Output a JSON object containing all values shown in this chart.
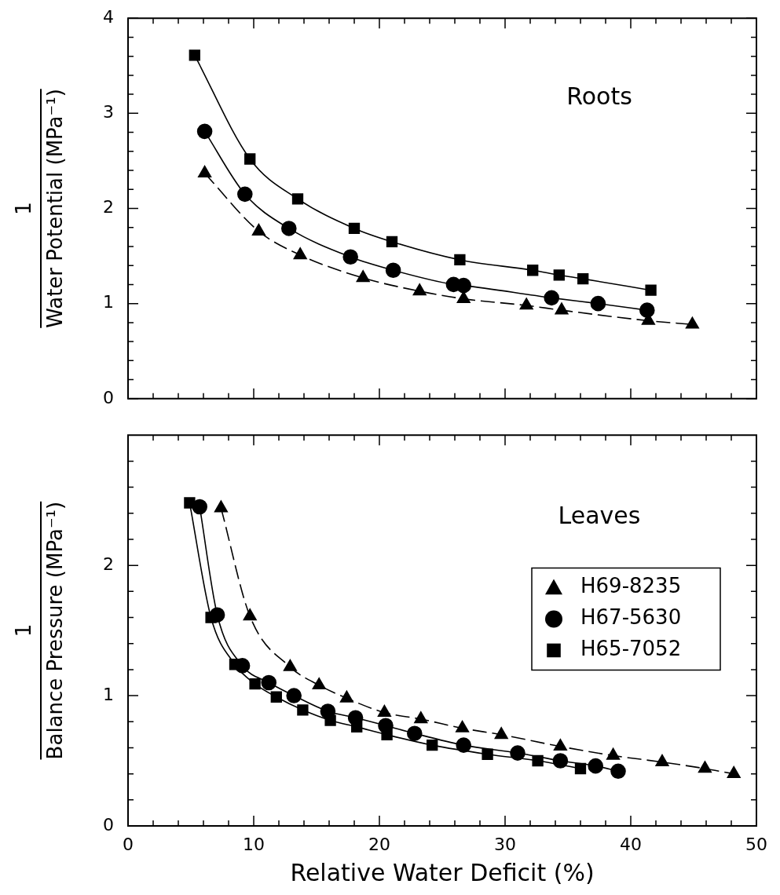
{
  "chart_data": [
    {
      "type": "line",
      "title": "Roots",
      "ylabel": "Water Potential (MPa⁻¹)",
      "annotations": [
        "1"
      ],
      "xlim": [
        0,
        50
      ],
      "xticks": [
        0,
        {
          "value": 2,
          "label": null
        },
        {
          "value": 4,
          "label": null
        },
        {
          "value": 6,
          "label": null
        },
        {
          "value": 8,
          "label": null
        },
        10,
        {
          "value": 12,
          "label": null
        },
        {
          "value": 14,
          "label": null
        },
        {
          "value": 16,
          "label": null
        },
        {
          "value": 18,
          "label": null
        },
        20,
        {
          "value": 22,
          "label": null
        },
        {
          "value": 24,
          "label": null
        },
        {
          "value": 26,
          "label": null
        },
        {
          "value": 28,
          "label": null
        },
        30,
        {
          "value": 32,
          "label": null
        },
        {
          "value": 34,
          "label": null
        },
        {
          "value": 36,
          "label": null
        },
        {
          "value": 38,
          "label": null
        },
        40,
        {
          "value": 42,
          "label": null
        },
        {
          "value": 44,
          "label": null
        },
        {
          "value": 46,
          "label": null
        },
        {
          "value": 48,
          "label": null
        },
        50
      ],
      "ylim": [
        0,
        4
      ],
      "yticks": [
        0,
        {
          "value": 0.2,
          "label": null
        },
        {
          "value": 0.4,
          "label": null
        },
        {
          "value": 0.6,
          "label": null
        },
        {
          "value": 0.8,
          "label": null
        },
        1,
        {
          "value": 1.2,
          "label": null
        },
        {
          "value": 1.4,
          "label": null
        },
        {
          "value": 1.6,
          "label": null
        },
        {
          "value": 1.8,
          "label": null
        },
        2,
        {
          "value": 2.2,
          "label": null
        },
        {
          "value": 2.4,
          "label": null
        },
        {
          "value": 2.6,
          "label": null
        },
        {
          "value": 2.8,
          "label": null
        },
        3,
        {
          "value": 3.2,
          "label": null
        },
        {
          "value": 3.4,
          "label": null
        },
        {
          "value": 3.6,
          "label": null
        },
        {
          "value": 3.8,
          "label": null
        },
        4
      ],
      "tick_labels": "y",
      "series": [
        {
          "color": "#000000",
          "marker": "triangle",
          "line_style": "dashed",
          "x": [
            6.1,
            10.4,
            13.7,
            18.7,
            23.2,
            26.7,
            31.7,
            34.5,
            41.4,
            44.9
          ],
          "values": [
            2.37,
            1.76,
            1.51,
            1.27,
            1.13,
            1.05,
            0.98,
            0.93,
            0.82,
            0.78
          ]
        },
        {
          "color": "#000000",
          "marker": "circle",
          "line_style": "solid",
          "x": [
            6.1,
            9.3,
            12.8,
            17.7,
            21.1,
            25.9,
            26.7,
            33.7,
            37.4,
            41.3
          ],
          "values": [
            2.81,
            2.15,
            1.79,
            1.49,
            1.35,
            1.2,
            1.19,
            1.06,
            1.0,
            0.93
          ]
        },
        {
          "color": "#000000",
          "marker": "square",
          "line_style": "solid",
          "x": [
            5.3,
            9.7,
            13.5,
            18.0,
            21.0,
            26.4,
            32.2,
            34.3,
            36.2,
            41.6
          ],
          "values": [
            3.61,
            2.52,
            2.1,
            1.79,
            1.65,
            1.46,
            1.35,
            1.3,
            1.26,
            1.14
          ]
        }
      ]
    },
    {
      "type": "line",
      "title": "Leaves",
      "ylabel": "Balance Pressure (MPa⁻¹)",
      "annotations": [
        "1"
      ],
      "xlabel": "Relative Water Deficit (%)",
      "legend": "right",
      "xlim": [
        0,
        50
      ],
      "xticks": [
        0,
        {
          "value": 2,
          "label": null
        },
        {
          "value": 4,
          "label": null
        },
        {
          "value": 6,
          "label": null
        },
        {
          "value": 8,
          "label": null
        },
        10,
        {
          "value": 12,
          "label": null
        },
        {
          "value": 14,
          "label": null
        },
        {
          "value": 16,
          "label": null
        },
        {
          "value": 18,
          "label": null
        },
        20,
        {
          "value": 22,
          "label": null
        },
        {
          "value": 24,
          "label": null
        },
        {
          "value": 26,
          "label": null
        },
        {
          "value": 28,
          "label": null
        },
        30,
        {
          "value": 32,
          "label": null
        },
        {
          "value": 34,
          "label": null
        },
        {
          "value": 36,
          "label": null
        },
        {
          "value": 38,
          "label": null
        },
        40,
        {
          "value": 42,
          "label": null
        },
        {
          "value": 44,
          "label": null
        },
        {
          "value": 46,
          "label": null
        },
        {
          "value": 48,
          "label": null
        },
        50
      ],
      "ylim": [
        0,
        3
      ],
      "yticks": [
        0,
        {
          "value": 0.2,
          "label": null
        },
        {
          "value": 0.4,
          "label": null
        },
        {
          "value": 0.6,
          "label": null
        },
        {
          "value": 0.8,
          "label": null
        },
        1,
        {
          "value": 1.2,
          "label": null
        },
        {
          "value": 1.4,
          "label": null
        },
        {
          "value": 1.6,
          "label": null
        },
        {
          "value": 1.8,
          "label": null
        },
        2,
        {
          "value": 2.2,
          "label": null
        },
        {
          "value": 2.4,
          "label": null
        },
        {
          "value": 2.6,
          "label": null
        },
        {
          "value": 2.8,
          "label": null
        }
      ],
      "series": [
        {
          "name": "H69-8235",
          "color": "#000000",
          "marker": "triangle",
          "line_style": "dashed",
          "x": [
            7.4,
            9.7,
            12.9,
            15.2,
            17.4,
            20.4,
            23.3,
            26.6,
            29.7,
            34.4,
            38.6,
            42.5,
            45.9,
            48.2
          ],
          "values": [
            2.44,
            1.61,
            1.22,
            1.08,
            0.98,
            0.87,
            0.82,
            0.75,
            0.7,
            0.61,
            0.54,
            0.49,
            0.44,
            0.4
          ]
        },
        {
          "name": "H67-5630",
          "color": "#000000",
          "marker": "circle",
          "line_style": "solid",
          "x": [
            5.7,
            7.1,
            9.1,
            11.2,
            13.2,
            15.9,
            18.1,
            20.5,
            22.8,
            26.7,
            31.0,
            34.4,
            37.2,
            39.0
          ],
          "values": [
            2.45,
            1.62,
            1.23,
            1.1,
            1.0,
            0.88,
            0.83,
            0.77,
            0.71,
            0.62,
            0.56,
            0.5,
            0.46,
            0.42
          ]
        },
        {
          "name": "H65-7052",
          "color": "#000000",
          "marker": "square",
          "line_style": "solid",
          "x": [
            4.9,
            6.6,
            8.5,
            10.1,
            11.8,
            13.9,
            16.1,
            18.2,
            20.6,
            24.2,
            28.6,
            32.6,
            36.0
          ],
          "values": [
            2.48,
            1.6,
            1.24,
            1.09,
            0.99,
            0.89,
            0.81,
            0.76,
            0.7,
            0.62,
            0.55,
            0.5,
            0.44
          ]
        }
      ]
    }
  ]
}
